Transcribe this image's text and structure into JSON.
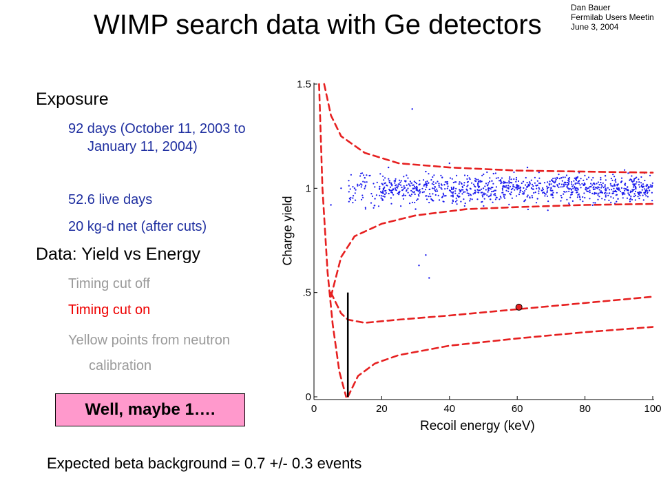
{
  "title": "WIMP search data with Ge detectors",
  "author_note": [
    "Dan Bauer",
    "Fermilab Users Meetin",
    "June 3, 2004"
  ],
  "bullets": {
    "exposure_heading": "Exposure",
    "exposure_items": [
      "92 days (October 11, 2003 to  January 11, 2004)",
      "52.6 live days",
      "20 kg-d net (after cuts)"
    ],
    "data_heading": "Data: Yield vs Energy",
    "timing_off": "Timing cut off",
    "timing_on": "Timing cut on",
    "yellow_points": "Yellow points from neutron calibration"
  },
  "highlight_box": "Well, maybe 1….",
  "footer": "Expected beta background = 0.7 +/- 0.3 events",
  "colors": {
    "data_points": "#1a1aee",
    "band_lines": "#e62020",
    "candidate_event": "#e62020",
    "highlight_box": "#ff99cc",
    "exposure_text": "#1f2fa0",
    "timing_on_text": "#ee0000",
    "gray_text": "#9a9a9a"
  },
  "chart_data": {
    "type": "scatter",
    "xlabel": "Recoil energy (keV)",
    "ylabel": "Charge yield",
    "xlim": [
      0,
      100
    ],
    "ylim": [
      0,
      1.5
    ],
    "x_ticks": [
      0,
      20,
      40,
      60,
      80,
      100
    ],
    "y_ticks": [
      0,
      0.5,
      1,
      1.5
    ],
    "y_tick_labels": [
      "0",
      ".5",
      "1",
      "1.5"
    ],
    "series": [
      {
        "kind": "scatter",
        "color": "#1a1aee",
        "points_visible": "approximately 1000 electron-recoil events, yield ~0.85-1.2, energy ~10-100 keV",
        "sample_points": [
          [
            12,
            1.0
          ],
          [
            15,
            1.05
          ],
          [
            18,
            0.95
          ],
          [
            22,
            1.1
          ],
          [
            25,
            0.98
          ],
          [
            28,
            1.02
          ],
          [
            30,
            0.9
          ],
          [
            33,
            1.08
          ],
          [
            35,
            1.0
          ],
          [
            38,
            0.96
          ],
          [
            40,
            1.12
          ],
          [
            43,
            1.03
          ],
          [
            46,
            0.94
          ],
          [
            50,
            1.0
          ],
          [
            53,
            1.07
          ],
          [
            56,
            0.97
          ],
          [
            60,
            1.01
          ],
          [
            63,
            1.1
          ],
          [
            66,
            0.95
          ],
          [
            70,
            1.0
          ],
          [
            73,
            1.05
          ],
          [
            76,
            0.98
          ],
          [
            80,
            1.02
          ],
          [
            83,
            0.93
          ],
          [
            86,
            1.06
          ],
          [
            90,
            1.0
          ],
          [
            93,
            0.97
          ],
          [
            96,
            1.03
          ],
          [
            99,
            0.99
          ],
          [
            29,
            1.38
          ],
          [
            33,
            0.68
          ],
          [
            31,
            0.63
          ],
          [
            34,
            0.57
          ],
          [
            8,
            1.0
          ],
          [
            5,
            0.92
          ]
        ]
      },
      {
        "kind": "curve",
        "name_visible": false,
        "style": "dashed",
        "color": "#e62020",
        "description": "upper electron-recoil band edge",
        "points": [
          [
            3,
            1.5
          ],
          [
            5,
            1.35
          ],
          [
            8,
            1.25
          ],
          [
            15,
            1.17
          ],
          [
            25,
            1.12
          ],
          [
            40,
            1.1
          ],
          [
            60,
            1.085
          ],
          [
            80,
            1.08
          ],
          [
            100,
            1.075
          ]
        ]
      },
      {
        "kind": "curve",
        "name_visible": false,
        "style": "dashed",
        "color": "#e62020",
        "description": "lower electron-recoil band edge",
        "points": [
          [
            5,
            0.48
          ],
          [
            8,
            0.67
          ],
          [
            12,
            0.77
          ],
          [
            20,
            0.83
          ],
          [
            30,
            0.87
          ],
          [
            45,
            0.9
          ],
          [
            60,
            0.91
          ],
          [
            80,
            0.92
          ],
          [
            100,
            0.925
          ]
        ]
      },
      {
        "kind": "curve",
        "name_visible": false,
        "style": "dashed",
        "color": "#e62020",
        "description": "threshold curve",
        "points": [
          [
            1.5,
            1.5
          ],
          [
            2.5,
            1.0
          ],
          [
            4,
            0.6
          ],
          [
            5.5,
            0.35
          ],
          [
            7.5,
            0.12
          ],
          [
            9.5,
            0.0
          ]
        ]
      },
      {
        "kind": "curve",
        "name_visible": false,
        "style": "dashed",
        "color": "#e62020",
        "description": "upper nuclear-recoil band edge",
        "points": [
          [
            5,
            0.5
          ],
          [
            8,
            0.4
          ],
          [
            10,
            0.37
          ],
          [
            15,
            0.355
          ],
          [
            25,
            0.37
          ],
          [
            40,
            0.39
          ],
          [
            60,
            0.42
          ],
          [
            80,
            0.45
          ],
          [
            100,
            0.48
          ]
        ]
      },
      {
        "kind": "curve",
        "name_visible": false,
        "style": "dashed",
        "color": "#e62020",
        "description": "lower nuclear-recoil band edge",
        "points": [
          [
            10,
            0.0
          ],
          [
            13,
            0.1
          ],
          [
            18,
            0.16
          ],
          [
            25,
            0.2
          ],
          [
            40,
            0.245
          ],
          [
            60,
            0.28
          ],
          [
            80,
            0.31
          ],
          [
            100,
            0.335
          ]
        ]
      },
      {
        "kind": "vline",
        "color": "#000000",
        "x": 10,
        "y_range": [
          0,
          0.5
        ]
      },
      {
        "kind": "highlight_point",
        "color": "#e62020",
        "x": 60.5,
        "y": 0.43
      }
    ]
  }
}
